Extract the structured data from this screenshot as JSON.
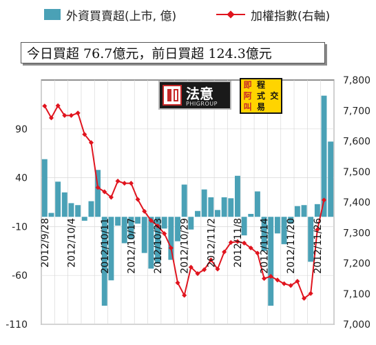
{
  "legend": {
    "bar_label": "外資買賣超(上市, 億)",
    "line_label": "加權指數(右軸)",
    "bar_color": "#4aa1b6",
    "line_color": "#e0141e"
  },
  "summary": {
    "text": "今日買超 76.7億元，前日買超 124.3億元"
  },
  "logos": {
    "logo1_text": "法意",
    "logo1_sub": "PHIGROUP",
    "logo2_chars": [
      "即",
      "程",
      "",
      "阿",
      "式",
      "交",
      "叫",
      "易",
      ""
    ]
  },
  "chart_data": {
    "type": "bar",
    "title": "",
    "ylim": [
      -110,
      140
    ],
    "y2lim": [
      7000,
      7800
    ],
    "left_ticks": [
      90,
      40,
      -10,
      -60,
      -110
    ],
    "right_ticks": [
      7800,
      7700,
      7600,
      7500,
      7400,
      7300,
      7200,
      7100,
      7000
    ],
    "x_labels": [
      "2012/9/28",
      "2012/10/4",
      "2012/10/11",
      "2012/10/17",
      "2012/10/23",
      "2012/10/29",
      "2012/11/2",
      "2012/11/8",
      "2012/11/14",
      "2012/11/20",
      "2012/11/26"
    ],
    "x_label_indices": [
      0,
      4,
      9,
      13,
      17,
      21,
      25,
      29,
      33,
      37,
      41
    ],
    "series": [
      {
        "name": "外資買賣超(上市, 億)",
        "kind": "bar",
        "axis": "left",
        "values": [
          59,
          4,
          36,
          25,
          14,
          12,
          -4,
          16,
          48,
          -91,
          -65,
          -9,
          -27,
          -23,
          -7,
          -37,
          -53,
          -48,
          -12,
          -44,
          -25,
          33,
          -13,
          6,
          28,
          20,
          7,
          20,
          19,
          42,
          -19,
          3,
          26,
          -35,
          -91,
          -17,
          -28,
          -7,
          11,
          12,
          -46,
          13,
          124,
          77
        ]
      },
      {
        "name": "加權指數(右軸)",
        "kind": "line",
        "axis": "right",
        "values": [
          7715,
          7676,
          7716,
          7684,
          7684,
          7692,
          7622,
          7595,
          7448,
          7434,
          7416,
          7469,
          7462,
          7462,
          7409,
          7370,
          7340,
          7322,
          7297,
          7250,
          7136,
          7095,
          7187,
          7166,
          7179,
          7211,
          7181,
          7237,
          7268,
          7271,
          7266,
          7250,
          7233,
          7150,
          7157,
          7145,
          7133,
          7127,
          7141,
          7085,
          7101,
          7310,
          7407
        ]
      }
    ]
  }
}
